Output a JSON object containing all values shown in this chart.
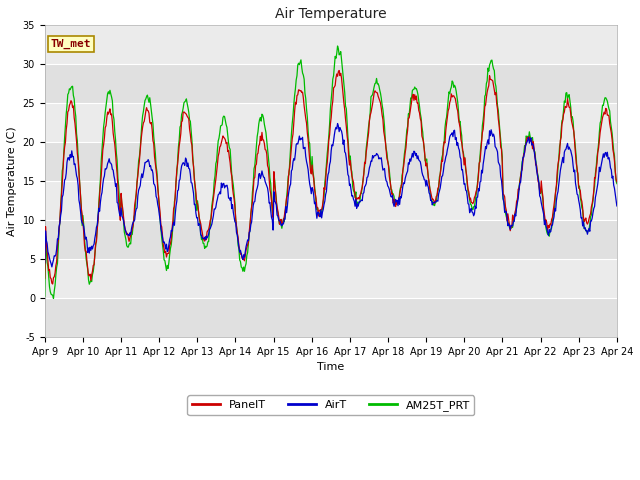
{
  "title": "Air Temperature",
  "ylabel": "Air Temperature (C)",
  "xlabel": "Time",
  "ylim": [
    -5,
    35
  ],
  "xlim": [
    0,
    15
  ],
  "xtick_labels": [
    "Apr 9",
    "Apr 10",
    "Apr 11",
    "Apr 12",
    "Apr 13",
    "Apr 14",
    "Apr 15",
    "Apr 16",
    "Apr 17",
    "Apr 18",
    "Apr 19",
    "Apr 20",
    "Apr 21",
    "Apr 22",
    "Apr 23",
    "Apr 24"
  ],
  "annotation_text": "TW_met",
  "annotation_color": "#880000",
  "annotation_bg": "#ffffc0",
  "annotation_edge": "#aa8800",
  "plot_bg_color": "#e8e8e8",
  "fig_bg_color": "#ffffff",
  "band_colors": [
    "#e8e8e8",
    "#d8d8d8"
  ],
  "line_colors": {
    "PanelT": "#cc0000",
    "AirT": "#0000cc",
    "AM25T_PRT": "#00bb00"
  },
  "legend_labels": [
    "PanelT",
    "AirT",
    "AM25T_PRT"
  ],
  "title_fontsize": 10,
  "axis_label_fontsize": 8,
  "tick_fontsize": 7,
  "legend_fontsize": 8
}
